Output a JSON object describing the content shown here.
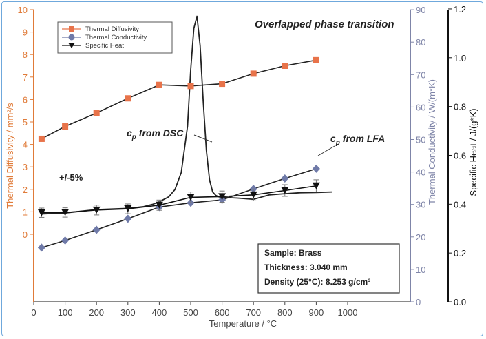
{
  "chart_data": {
    "type": "scatter",
    "xlabel": "Temperature / °C",
    "x_ticks": [
      0,
      100,
      200,
      300,
      400,
      500,
      600,
      700,
      800,
      900,
      1000
    ],
    "y_left": {
      "label": "Thermal Diffusivity / mm²/s",
      "ticks": [
        0,
        1,
        2,
        3,
        4,
        5,
        6,
        7,
        8,
        9,
        10
      ],
      "color": "#e07b39"
    },
    "y_right1": {
      "label": "Thermal Conductivity / W/(m*K)",
      "ticks": [
        0,
        10,
        20,
        30,
        40,
        50,
        60,
        70,
        80,
        90
      ],
      "color": "#7f85a8"
    },
    "y_right2": {
      "label": "Specific Heat / J/(g*K)",
      "ticks": [
        "0.0",
        "0.2",
        "0.4",
        "0.6",
        "0.8",
        "1.0",
        "1.2"
      ],
      "color": "#111111"
    },
    "legend": {
      "placement": "top-left",
      "entries": [
        "Thermal Diffusivity",
        "Thermal Conductivity",
        "Specific Heat"
      ]
    },
    "series": [
      {
        "name": "Thermal Diffusivity",
        "axis": "left",
        "marker": "square",
        "color": "#e8734a",
        "x": [
          25,
          100,
          200,
          300,
          400,
          500,
          600,
          700,
          800,
          900
        ],
        "y": [
          4.25,
          4.8,
          5.4,
          6.05,
          6.65,
          6.6,
          6.7,
          7.15,
          7.5,
          7.75
        ]
      },
      {
        "name": "Thermal Conductivity",
        "axis": "right1",
        "marker": "diamond",
        "color": "#6f7aa8",
        "x": [
          25,
          100,
          200,
          300,
          400,
          500,
          600,
          700,
          800,
          900
        ],
        "y": [
          16.7,
          18.9,
          22.2,
          25.6,
          29.2,
          30.5,
          31.4,
          34.8,
          38.0,
          41.0
        ]
      },
      {
        "name": "Specific Heat",
        "axis": "right2",
        "marker": "triangle-down",
        "color": "#111111",
        "x": [
          25,
          100,
          200,
          300,
          400,
          500,
          600,
          700,
          800,
          900
        ],
        "y": [
          0.365,
          0.366,
          0.376,
          0.381,
          0.396,
          0.428,
          0.431,
          0.438,
          0.456,
          0.475
        ],
        "err": [
          0.019,
          0.019,
          0.02,
          0.02,
          0.021,
          0.022,
          0.023,
          0.024,
          0.024,
          0.025
        ]
      }
    ],
    "curve_dsc": {
      "axis": "right2",
      "color": "#222222",
      "x": [
        25,
        100,
        200,
        300,
        350,
        380,
        400,
        430,
        450,
        470,
        490,
        500,
        510,
        520,
        530,
        540,
        550,
        560,
        570,
        580,
        590,
        600,
        650,
        700,
        750,
        800,
        850,
        900,
        950
      ],
      "y": [
        0.36,
        0.364,
        0.378,
        0.383,
        0.39,
        0.4,
        0.41,
        0.43,
        0.46,
        0.53,
        0.72,
        0.95,
        1.12,
        1.17,
        1.05,
        0.82,
        0.62,
        0.5,
        0.45,
        0.436,
        0.43,
        0.428,
        0.425,
        0.42,
        0.438,
        0.443,
        0.447,
        0.448,
        0.45
      ]
    },
    "annotations": {
      "peak": "Overlapped phase transition",
      "dsc": "c",
      "dsc_sub": "p",
      "dsc_rest": " from DSC",
      "lfa": "c",
      "lfa_sub": "p",
      "lfa_rest": " from LFA",
      "tolerance": "+/-5%"
    },
    "info_box": {
      "sample": "Sample: Brass",
      "thickness": "Thickness:  3.040 mm",
      "density": "Density (25°C): 8.253 g/cm³"
    }
  }
}
